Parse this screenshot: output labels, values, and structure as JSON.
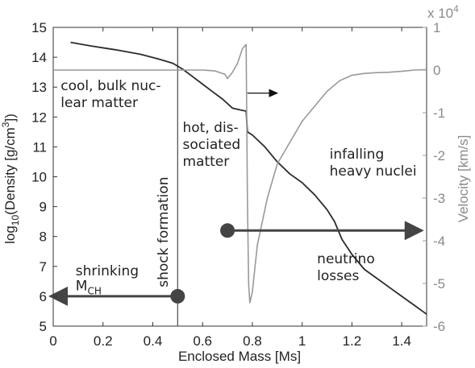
{
  "chart_data": {
    "type": "line",
    "title": "",
    "xlabel": "Enclosed Mass [Ms]",
    "xlim": [
      0,
      1.5
    ],
    "x_ticks": [
      0,
      0.2,
      0.4,
      0.6,
      0.8,
      1,
      1.2,
      1.4
    ],
    "x_tick_labels": [
      "0",
      "0.2",
      "0.4",
      "0.6",
      "0.8",
      "1",
      "1.2",
      "1.4"
    ],
    "ylabel_left": {
      "prefix": "log",
      "sub": "10",
      "mid": "(Density [g/cm",
      "sup": "3",
      "suffix": "])"
    },
    "ylim_left": [
      5,
      15
    ],
    "y_left_ticks": [
      5,
      6,
      7,
      8,
      9,
      10,
      11,
      12,
      13,
      14,
      15
    ],
    "y_left_tick_labels": [
      "5",
      "6",
      "7",
      "8",
      "9",
      "10",
      "11",
      "12",
      "13",
      "14",
      "15"
    ],
    "ylabel_right": "Velocity [km/s]",
    "ylim_right": [
      -6,
      1
    ],
    "y_right_ticks": [
      -6,
      -5,
      -4,
      -3,
      -2,
      -1,
      0,
      1
    ],
    "y_right_tick_labels": [
      "-6",
      "-5",
      "-4",
      "-3",
      "-2",
      "-1",
      "0",
      "1"
    ],
    "y_right_multiplier": {
      "base": "x 10",
      "exp": "4"
    },
    "grid": false,
    "colors": {
      "density": "#2b2b2b",
      "velocity": "#999999",
      "axes": "#333333",
      "marker": "#444444"
    },
    "series": [
      {
        "key": "density",
        "axis": "left",
        "x": [
          0.07,
          0.15,
          0.25,
          0.35,
          0.42,
          0.48,
          0.52,
          0.56,
          0.6,
          0.64,
          0.68,
          0.72,
          0.76,
          0.775,
          0.78,
          0.8,
          0.85,
          0.9,
          0.95,
          1.0,
          1.05,
          1.1,
          1.13,
          1.16,
          1.2,
          1.25,
          1.3,
          1.35,
          1.4,
          1.45,
          1.5
        ],
        "y": [
          14.5,
          14.38,
          14.25,
          14.1,
          13.95,
          13.8,
          13.6,
          13.35,
          13.1,
          12.85,
          12.6,
          12.3,
          12.22,
          12.2,
          11.5,
          11.4,
          11.0,
          10.5,
          10.1,
          9.8,
          9.4,
          8.9,
          8.5,
          7.9,
          7.4,
          6.9,
          6.6,
          6.3,
          6.0,
          5.7,
          5.4
        ]
      },
      {
        "key": "velocity",
        "axis": "right",
        "x": [
          0,
          0.5,
          0.6,
          0.65,
          0.69,
          0.7,
          0.72,
          0.74,
          0.76,
          0.775,
          0.78,
          0.785,
          0.79,
          0.8,
          0.82,
          0.86,
          0.9,
          0.95,
          1.0,
          1.05,
          1.1,
          1.15,
          1.2,
          1.25,
          1.3,
          1.35,
          1.4,
          1.45,
          1.5
        ],
        "y": [
          0.0,
          0.0,
          0.0,
          -0.02,
          -0.1,
          -0.2,
          -0.05,
          0.15,
          0.5,
          0.6,
          -3.0,
          -5.0,
          -5.45,
          -5.2,
          -4.1,
          -3.0,
          -2.2,
          -1.7,
          -1.2,
          -0.85,
          -0.5,
          -0.25,
          -0.12,
          -0.08,
          -0.06,
          -0.05,
          -0.03,
          0.0,
          0.01
        ]
      }
    ],
    "vline_x": 0.5,
    "annotations": [
      {
        "id": "cool",
        "lines": [
          "cool, bulk nuc-",
          "lear matter"
        ],
        "x": 0.03,
        "y": 12.9
      },
      {
        "id": "hot",
        "lines": [
          "hot, dis-",
          "sociated",
          "matter"
        ],
        "x": 0.52,
        "y": 11.5
      },
      {
        "id": "infalling",
        "lines": [
          "infalling",
          "heavy nuclei"
        ],
        "x": 1.11,
        "y": 10.6
      },
      {
        "id": "neutrino",
        "lines": [
          "neutrino",
          "losses"
        ],
        "x": 1.06,
        "y": 7.1
      },
      {
        "id": "shrinking",
        "lines": [
          "shrinking"
        ],
        "x": 0.09,
        "y": 6.7
      },
      {
        "id": "shock",
        "text": "shock formation",
        "x": 0.46,
        "y": 6.3,
        "rotate": -90
      }
    ],
    "mch_label": {
      "base": "M",
      "sub": "CH"
    },
    "arrows": [
      {
        "id": "left-arrow",
        "x1": 0.5,
        "x2": 0.0,
        "y": 6.0,
        "dot": true
      },
      {
        "id": "right-arrow",
        "x1": 0.7,
        "x2": 1.47,
        "y": 8.2,
        "dot": true
      },
      {
        "id": "shock-arrow",
        "x1": 0.78,
        "x2": 0.9,
        "y": 12.8,
        "dot": false
      }
    ]
  }
}
